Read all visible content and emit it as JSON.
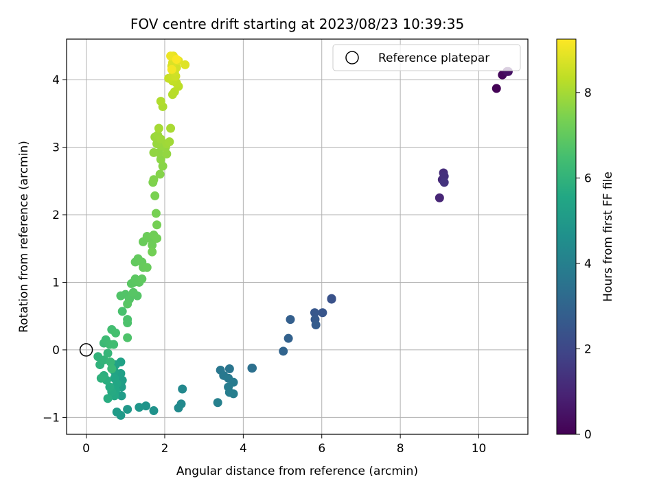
{
  "chart_data": {
    "type": "scatter",
    "title": "FOV centre drift starting at 2023/08/23 10:39:35",
    "xlabel": "Angular distance from reference (arcmin)",
    "ylabel": "Rotation from reference (arcmin)",
    "xlim": [
      -0.5,
      11.25
    ],
    "ylim": [
      -1.25,
      4.6
    ],
    "xticks": [
      0,
      2,
      4,
      6,
      8,
      10
    ],
    "yticks": [
      -1,
      0,
      1,
      2,
      3,
      4
    ],
    "grid": true,
    "legend": {
      "placement": "top-right",
      "entries": [
        "Reference platepar"
      ]
    },
    "reference_point": {
      "x": 0,
      "y": 0
    },
    "colorbar": {
      "label": "Hours from first FF file",
      "colormap": "viridis",
      "range": [
        0,
        9.25
      ],
      "ticks": [
        0,
        2,
        4,
        6,
        8
      ]
    },
    "series": [
      {
        "points": [
          {
            "x": 10.45,
            "y": 3.87,
            "t": 0.05
          },
          {
            "x": 10.6,
            "y": 4.07,
            "t": 0.2
          },
          {
            "x": 10.72,
            "y": 4.12,
            "t": 0.35
          },
          {
            "x": 10.75,
            "y": 4.12,
            "t": 0.45
          },
          {
            "x": 9.0,
            "y": 2.25,
            "t": 1.0
          },
          {
            "x": 9.07,
            "y": 2.52,
            "t": 1.1
          },
          {
            "x": 9.1,
            "y": 2.62,
            "t": 1.2
          },
          {
            "x": 9.12,
            "y": 2.57,
            "t": 1.3
          },
          {
            "x": 9.12,
            "y": 2.48,
            "t": 1.4
          },
          {
            "x": 6.25,
            "y": 0.75,
            "t": 2.3
          },
          {
            "x": 6.25,
            "y": 0.76,
            "t": 2.35
          },
          {
            "x": 6.02,
            "y": 0.55,
            "t": 2.45
          },
          {
            "x": 5.82,
            "y": 0.55,
            "t": 2.55
          },
          {
            "x": 5.83,
            "y": 0.45,
            "t": 2.6
          },
          {
            "x": 5.85,
            "y": 0.37,
            "t": 2.7
          },
          {
            "x": 5.2,
            "y": 0.45,
            "t": 2.8
          },
          {
            "x": 5.15,
            "y": 0.17,
            "t": 2.9
          },
          {
            "x": 5.02,
            "y": -0.02,
            "t": 3.0
          },
          {
            "x": 4.22,
            "y": -0.27,
            "t": 3.35
          },
          {
            "x": 4.23,
            "y": -0.27,
            "t": 3.4
          },
          {
            "x": 3.65,
            "y": -0.28,
            "t": 3.6
          },
          {
            "x": 3.42,
            "y": -0.3,
            "t": 3.65
          },
          {
            "x": 3.5,
            "y": -0.38,
            "t": 3.7
          },
          {
            "x": 3.62,
            "y": -0.42,
            "t": 3.75
          },
          {
            "x": 3.75,
            "y": -0.48,
            "t": 3.8
          },
          {
            "x": 3.62,
            "y": -0.55,
            "t": 3.85
          },
          {
            "x": 3.65,
            "y": -0.63,
            "t": 3.9
          },
          {
            "x": 3.75,
            "y": -0.65,
            "t": 3.95
          },
          {
            "x": 3.35,
            "y": -0.78,
            "t": 4.0
          },
          {
            "x": 2.45,
            "y": -0.58,
            "t": 4.3
          },
          {
            "x": 2.42,
            "y": -0.8,
            "t": 4.35
          },
          {
            "x": 2.35,
            "y": -0.86,
            "t": 4.4
          },
          {
            "x": 1.72,
            "y": -0.9,
            "t": 4.7
          },
          {
            "x": 1.52,
            "y": -0.83,
            "t": 4.8
          },
          {
            "x": 1.35,
            "y": -0.85,
            "t": 4.85
          },
          {
            "x": 1.05,
            "y": -0.88,
            "t": 4.95
          },
          {
            "x": 0.88,
            "y": -0.97,
            "t": 5.0
          },
          {
            "x": 0.78,
            "y": -0.92,
            "t": 5.05
          },
          {
            "x": 0.9,
            "y": -0.68,
            "t": 5.1
          },
          {
            "x": 0.9,
            "y": -0.55,
            "t": 5.15
          },
          {
            "x": 0.92,
            "y": -0.45,
            "t": 5.2
          },
          {
            "x": 0.88,
            "y": -0.35,
            "t": 5.25
          },
          {
            "x": 0.88,
            "y": -0.18,
            "t": 5.3
          },
          {
            "x": 0.75,
            "y": -0.22,
            "t": 5.35
          },
          {
            "x": 0.72,
            "y": -0.32,
            "t": 5.4
          },
          {
            "x": 0.72,
            "y": -0.42,
            "t": 5.45
          },
          {
            "x": 0.78,
            "y": -0.5,
            "t": 5.5
          },
          {
            "x": 0.75,
            "y": -0.6,
            "t": 5.55
          },
          {
            "x": 0.72,
            "y": -0.68,
            "t": 5.6
          },
          {
            "x": 0.65,
            "y": -0.62,
            "t": 5.65
          },
          {
            "x": 0.6,
            "y": -0.55,
            "t": 5.7
          },
          {
            "x": 0.55,
            "y": -0.72,
            "t": 5.75
          },
          {
            "x": 0.52,
            "y": -0.45,
            "t": 5.8
          },
          {
            "x": 0.45,
            "y": -0.38,
            "t": 5.85
          },
          {
            "x": 0.38,
            "y": -0.42,
            "t": 5.9
          },
          {
            "x": 0.35,
            "y": -0.22,
            "t": 5.95
          },
          {
            "x": 0.3,
            "y": -0.1,
            "t": 6.0
          },
          {
            "x": 0.45,
            "y": -0.15,
            "t": 6.05
          },
          {
            "x": 0.55,
            "y": -0.05,
            "t": 6.1
          },
          {
            "x": 0.62,
            "y": -0.18,
            "t": 6.15
          },
          {
            "x": 0.65,
            "y": -0.28,
            "t": 6.2
          },
          {
            "x": 0.45,
            "y": 0.1,
            "t": 6.25
          },
          {
            "x": 0.5,
            "y": 0.15,
            "t": 6.3
          },
          {
            "x": 0.6,
            "y": 0.08,
            "t": 6.35
          },
          {
            "x": 0.7,
            "y": 0.08,
            "t": 6.4
          },
          {
            "x": 0.65,
            "y": 0.3,
            "t": 6.45
          },
          {
            "x": 0.75,
            "y": 0.25,
            "t": 6.5
          },
          {
            "x": 0.92,
            "y": 0.57,
            "t": 6.55
          },
          {
            "x": 1.05,
            "y": 0.45,
            "t": 6.6
          },
          {
            "x": 1.05,
            "y": 0.4,
            "t": 6.62
          },
          {
            "x": 1.05,
            "y": 0.18,
            "t": 6.65
          },
          {
            "x": 0.88,
            "y": 0.8,
            "t": 6.7
          },
          {
            "x": 1.0,
            "y": 0.82,
            "t": 6.72
          },
          {
            "x": 1.1,
            "y": 0.75,
            "t": 6.75
          },
          {
            "x": 1.3,
            "y": 0.8,
            "t": 6.78
          },
          {
            "x": 1.2,
            "y": 0.85,
            "t": 6.8
          },
          {
            "x": 1.05,
            "y": 0.68,
            "t": 6.82
          },
          {
            "x": 1.15,
            "y": 0.98,
            "t": 6.85
          },
          {
            "x": 1.22,
            "y": 1.0,
            "t": 6.88
          },
          {
            "x": 1.25,
            "y": 1.05,
            "t": 6.9
          },
          {
            "x": 1.35,
            "y": 1.0,
            "t": 6.92
          },
          {
            "x": 1.42,
            "y": 1.05,
            "t": 6.95
          },
          {
            "x": 1.25,
            "y": 1.3,
            "t": 7.0
          },
          {
            "x": 1.32,
            "y": 1.35,
            "t": 7.02
          },
          {
            "x": 1.42,
            "y": 1.3,
            "t": 7.05
          },
          {
            "x": 1.45,
            "y": 1.22,
            "t": 7.08
          },
          {
            "x": 1.55,
            "y": 1.22,
            "t": 7.1
          },
          {
            "x": 1.45,
            "y": 1.6,
            "t": 7.12
          },
          {
            "x": 1.55,
            "y": 1.68,
            "t": 7.15
          },
          {
            "x": 1.62,
            "y": 1.65,
            "t": 7.18
          },
          {
            "x": 1.68,
            "y": 1.55,
            "t": 7.2
          },
          {
            "x": 1.72,
            "y": 1.7,
            "t": 7.22
          },
          {
            "x": 1.8,
            "y": 1.65,
            "t": 7.25
          },
          {
            "x": 1.68,
            "y": 1.45,
            "t": 7.28
          },
          {
            "x": 1.8,
            "y": 1.85,
            "t": 7.32
          },
          {
            "x": 1.78,
            "y": 2.02,
            "t": 7.35
          },
          {
            "x": 1.75,
            "y": 2.28,
            "t": 7.4
          },
          {
            "x": 1.7,
            "y": 2.48,
            "t": 7.45
          },
          {
            "x": 1.72,
            "y": 2.52,
            "t": 7.5
          },
          {
            "x": 1.88,
            "y": 2.6,
            "t": 7.55
          },
          {
            "x": 1.95,
            "y": 2.72,
            "t": 7.6
          },
          {
            "x": 1.9,
            "y": 2.82,
            "t": 7.65
          },
          {
            "x": 1.85,
            "y": 2.92,
            "t": 7.7
          },
          {
            "x": 1.72,
            "y": 2.92,
            "t": 7.72
          },
          {
            "x": 2.05,
            "y": 2.9,
            "t": 7.75
          },
          {
            "x": 2.02,
            "y": 3.0,
            "t": 7.78
          },
          {
            "x": 1.92,
            "y": 3.02,
            "t": 7.8
          },
          {
            "x": 1.8,
            "y": 3.05,
            "t": 7.82
          },
          {
            "x": 1.75,
            "y": 3.15,
            "t": 7.85
          },
          {
            "x": 1.82,
            "y": 3.18,
            "t": 7.88
          },
          {
            "x": 1.9,
            "y": 3.12,
            "t": 7.9
          },
          {
            "x": 2.05,
            "y": 3.05,
            "t": 7.92
          },
          {
            "x": 2.12,
            "y": 3.08,
            "t": 7.95
          },
          {
            "x": 1.85,
            "y": 3.28,
            "t": 8.0
          },
          {
            "x": 2.15,
            "y": 3.28,
            "t": 8.05
          },
          {
            "x": 1.95,
            "y": 3.6,
            "t": 8.1
          },
          {
            "x": 1.9,
            "y": 3.68,
            "t": 8.15
          },
          {
            "x": 2.2,
            "y": 3.78,
            "t": 8.2
          },
          {
            "x": 2.25,
            "y": 3.82,
            "t": 8.25
          },
          {
            "x": 2.35,
            "y": 3.9,
            "t": 8.3
          },
          {
            "x": 2.3,
            "y": 3.95,
            "t": 8.35
          },
          {
            "x": 2.2,
            "y": 3.98,
            "t": 8.4
          },
          {
            "x": 2.1,
            "y": 4.02,
            "t": 8.45
          },
          {
            "x": 2.2,
            "y": 4.05,
            "t": 8.5
          },
          {
            "x": 2.28,
            "y": 4.05,
            "t": 8.55
          },
          {
            "x": 2.25,
            "y": 4.12,
            "t": 8.6
          },
          {
            "x": 2.3,
            "y": 4.18,
            "t": 8.65
          },
          {
            "x": 2.18,
            "y": 4.2,
            "t": 8.7
          },
          {
            "x": 2.2,
            "y": 4.25,
            "t": 8.75
          },
          {
            "x": 2.52,
            "y": 4.22,
            "t": 8.8
          },
          {
            "x": 2.35,
            "y": 4.28,
            "t": 8.85
          },
          {
            "x": 2.22,
            "y": 4.35,
            "t": 8.9
          },
          {
            "x": 2.15,
            "y": 4.35,
            "t": 9.0
          },
          {
            "x": 2.18,
            "y": 4.15,
            "t": 9.1
          },
          {
            "x": 2.3,
            "y": 4.3,
            "t": 9.2
          }
        ]
      }
    ]
  }
}
